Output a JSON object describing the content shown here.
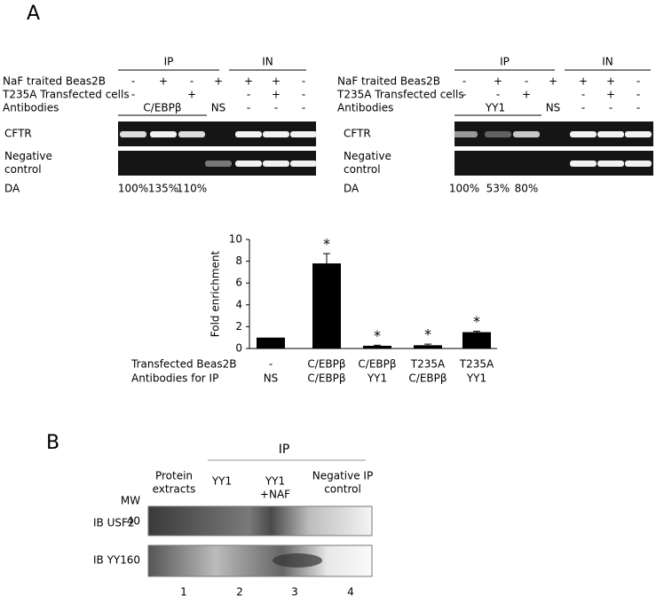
{
  "panel_a": {
    "label": "A",
    "blots": [
      {
        "ip_header": "IP",
        "in_header": "IN",
        "rows": [
          {
            "label": "NaF traited Beas2B",
            "lanes": [
              "-",
              "+",
              "-",
              "+",
              "+",
              "+",
              "-"
            ]
          },
          {
            "label": "T235A Transfected cells",
            "lanes": [
              "-",
              null,
              "+",
              null,
              "-",
              "+",
              "-"
            ]
          },
          {
            "label": "Antibodies",
            "ip_antibody": "C/EBPβ",
            "control_antibody": "NS",
            "lanes": [
              null,
              null,
              null,
              null,
              "-",
              "-",
              "-"
            ]
          }
        ],
        "gel_labels": [
          [
            "CFTR"
          ],
          [
            "Negative",
            "control"
          ]
        ],
        "da_label": "DA",
        "da_values": [
          "100%",
          "135%",
          "110%"
        ]
      },
      {
        "ip_header": "IP",
        "in_header": "IN",
        "rows": [
          {
            "label": "NaF traited Beas2B",
            "lanes": [
              "-",
              "+",
              "-",
              "+",
              "+",
              "+",
              "-"
            ]
          },
          {
            "label": "T235A Transfected cells",
            "lanes": [
              "-",
              "-",
              "+",
              null,
              "-",
              "+",
              "-"
            ]
          },
          {
            "label": "Antibodies",
            "ip_antibody": "YY1",
            "control_antibody": "NS",
            "lanes": [
              null,
              null,
              null,
              null,
              "-",
              "-",
              "-"
            ]
          }
        ],
        "gel_labels": [
          [
            "CFTR"
          ],
          [
            "Negative",
            "control"
          ]
        ],
        "da_label": "DA",
        "da_values": [
          "100%",
          "53%",
          "80%"
        ]
      }
    ]
  },
  "chart_data": {
    "type": "bar",
    "y_label": "Fold enrichment",
    "row_labels": [
      "Transfected Beas2B",
      "Antibodies for IP"
    ],
    "categories": [
      "-",
      "C/EBPβ",
      "C/EBPβ",
      "T235A",
      "T235A"
    ],
    "categories_2": [
      "NS",
      "C/EBPβ",
      "YY1",
      "C/EBPβ",
      "YY1"
    ],
    "series": [
      {
        "color": "#000000",
        "values": [
          1,
          7.8,
          0.25,
          0.3,
          1.5
        ],
        "errors": [
          null,
          0.9,
          0.05,
          0.1,
          0.08
        ]
      }
    ],
    "annotations": [
      null,
      "*",
      "*",
      "*",
      "*"
    ],
    "ylim": [
      0,
      10
    ],
    "yticks": [
      0,
      2,
      4,
      6,
      8,
      10
    ]
  },
  "panel_b": {
    "label": "B",
    "ip_header": "IP",
    "columns": [
      [
        "Protein",
        "extracts"
      ],
      [
        "YY1"
      ],
      [
        "YY1",
        "+NAF"
      ],
      [
        "Negative IP",
        "control"
      ]
    ],
    "mw_label": "MW",
    "blots": [
      {
        "label": "IB USF2",
        "mw": "40"
      },
      {
        "label": "IB YY1",
        "mw": "60"
      }
    ],
    "lanes": [
      "1",
      "2",
      "3",
      "4"
    ]
  }
}
